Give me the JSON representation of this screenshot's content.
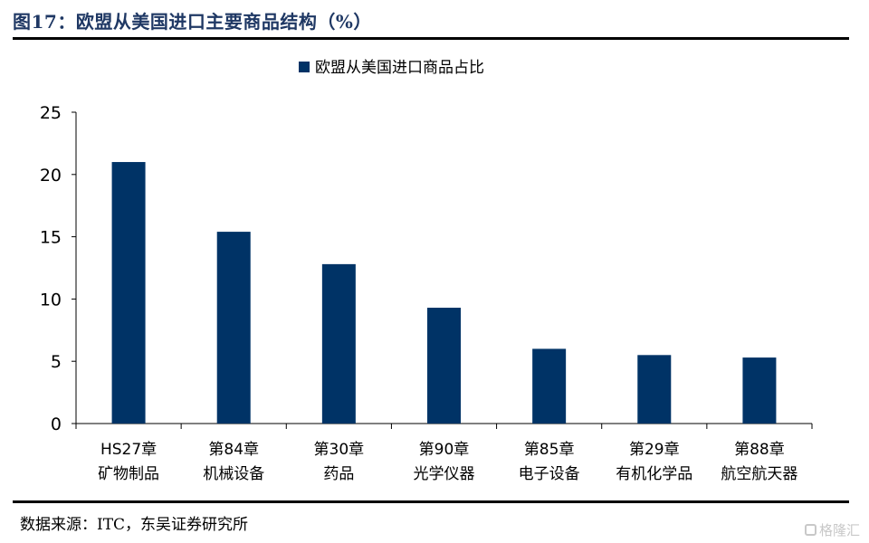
{
  "title": "图17：欧盟从美国进口主要商品结构（%）",
  "source": "数据来源：ITC，东吴证券研究所",
  "watermark": "格隆汇",
  "colors": {
    "bar": "#003366",
    "title": "#1f3864"
  },
  "chart_data": {
    "type": "bar",
    "legend_position": "top-center",
    "categories": [
      [
        "HS27章",
        "矿物制品"
      ],
      [
        "第84章",
        "机械设备"
      ],
      [
        "第30章",
        "药品"
      ],
      [
        "第90章",
        "光学仪器"
      ],
      [
        "第85章",
        "电子设备"
      ],
      [
        "第29章",
        "有机化学品"
      ],
      [
        "第88章",
        "航空航天器"
      ]
    ],
    "series": [
      {
        "name": "欧盟从美国进口商品占比",
        "values": [
          21.0,
          15.4,
          12.8,
          9.3,
          6.0,
          5.5,
          5.3
        ]
      }
    ],
    "ylim": [
      0,
      25
    ],
    "yticks": [
      0,
      5,
      10,
      15,
      20,
      25
    ],
    "grid": false
  }
}
